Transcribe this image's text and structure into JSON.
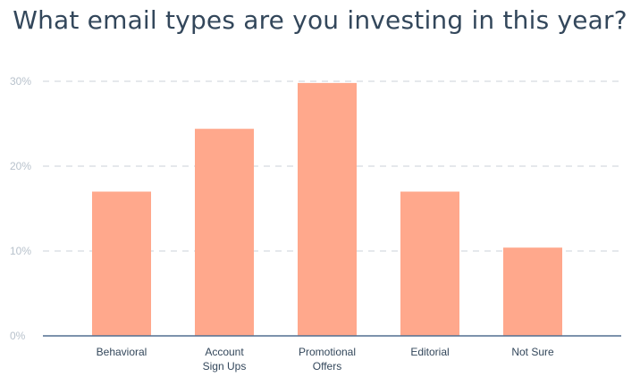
{
  "chart_data": {
    "type": "bar",
    "title": "What email types are you investing in this year?",
    "categories": [
      "Behavioral",
      "Account Sign Ups",
      "Promotional Offers",
      "Editorial",
      "Not Sure"
    ],
    "category_lines": [
      [
        "Behavioral"
      ],
      [
        "Account",
        "Sign Ups"
      ],
      [
        "Promotional",
        "Offers"
      ],
      [
        "Editorial"
      ],
      [
        "Not Sure"
      ]
    ],
    "values": [
      17,
      24.4,
      29.8,
      17,
      10.4
    ],
    "y_ticks": [
      0,
      10,
      20,
      30
    ],
    "y_tick_labels": [
      "0%",
      "10%",
      "20%",
      "30%"
    ],
    "ylim": [
      0,
      30
    ],
    "grid": "dashed-horizontal",
    "colors": {
      "bar": "#ffa88c",
      "grid": "#d5dbe1",
      "axis": "#516f90",
      "title": "#33475b",
      "tick": "#b8c2cc"
    }
  }
}
